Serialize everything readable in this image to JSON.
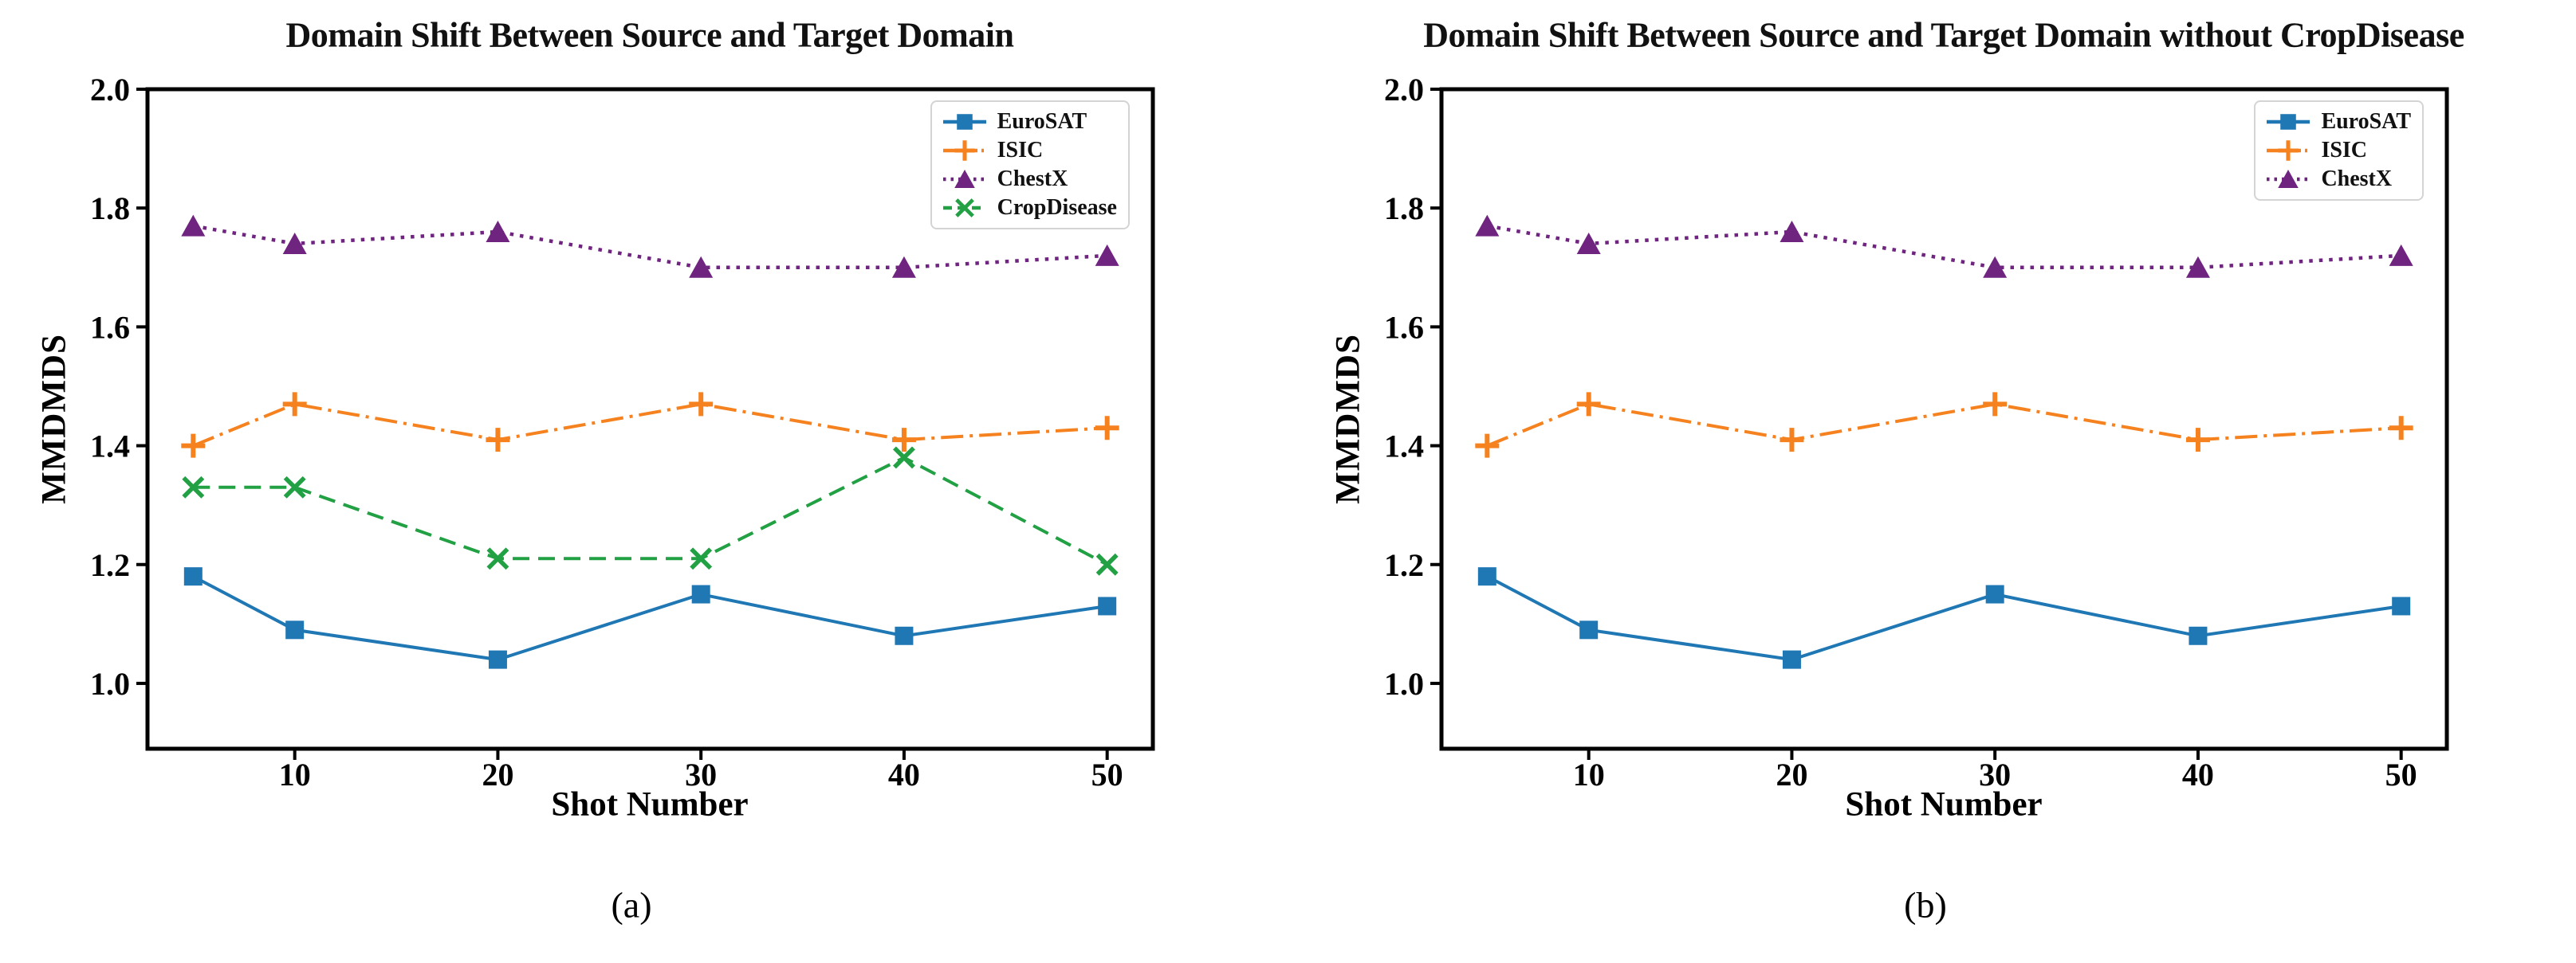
{
  "page": {
    "background": "#ffffff",
    "axis_color": "#000000",
    "legend_border_color": "#d4d4d4"
  },
  "chart_data": [
    {
      "type": "line",
      "title": "Domain Shift Between Source and Target Domain",
      "xlabel": "Shot Number",
      "ylabel": "MMDMDS",
      "caption": "(a)",
      "x": [
        5,
        10,
        20,
        30,
        40,
        50
      ],
      "xlim": [
        2.75,
        52.25
      ],
      "ylim": [
        0.89,
        2.0
      ],
      "xticks": [
        10,
        20,
        30,
        40,
        50
      ],
      "xtick_labels": [
        "10",
        "20",
        "30",
        "40",
        "50"
      ],
      "yticks": [
        1.0,
        1.2,
        1.4,
        1.6,
        1.8,
        2.0
      ],
      "ytick_labels": [
        "1.0",
        "1.2",
        "1.4",
        "1.6",
        "1.8",
        "2.0"
      ],
      "grid": false,
      "legend_position": "upper right",
      "series": [
        {
          "name": "EuroSAT",
          "color": "#1f77b4",
          "linestyle": "solid",
          "marker": "square",
          "values": [
            1.18,
            1.09,
            1.04,
            1.15,
            1.08,
            1.13
          ]
        },
        {
          "name": "ISIC",
          "color": "#f5821e",
          "linestyle": "dashdot",
          "marker": "plus",
          "values": [
            1.4,
            1.47,
            1.41,
            1.47,
            1.41,
            1.43
          ]
        },
        {
          "name": "ChestX",
          "color": "#6f2480",
          "linestyle": "dotted",
          "marker": "triangle",
          "values": [
            1.77,
            1.74,
            1.76,
            1.7,
            1.7,
            1.72
          ]
        },
        {
          "name": "CropDisease",
          "color": "#22a044",
          "linestyle": "dashed",
          "marker": "x",
          "values": [
            1.33,
            1.33,
            1.21,
            1.21,
            1.38,
            1.2
          ]
        }
      ]
    },
    {
      "type": "line",
      "title": "Domain Shift Between Source and Target Domain without CropDisease",
      "xlabel": "Shot Number",
      "ylabel": "MMDMDS",
      "caption": "(b)",
      "x": [
        5,
        10,
        20,
        30,
        40,
        50
      ],
      "xlim": [
        2.75,
        52.25
      ],
      "ylim": [
        0.89,
        2.0
      ],
      "xticks": [
        10,
        20,
        30,
        40,
        50
      ],
      "xtick_labels": [
        "10",
        "20",
        "30",
        "40",
        "50"
      ],
      "yticks": [
        1.0,
        1.2,
        1.4,
        1.6,
        1.8,
        2.0
      ],
      "ytick_labels": [
        "1.0",
        "1.2",
        "1.4",
        "1.6",
        "1.8",
        "2.0"
      ],
      "grid": false,
      "legend_position": "upper right",
      "series": [
        {
          "name": "EuroSAT",
          "color": "#1f77b4",
          "linestyle": "solid",
          "marker": "square",
          "values": [
            1.18,
            1.09,
            1.04,
            1.15,
            1.08,
            1.13
          ]
        },
        {
          "name": "ISIC",
          "color": "#f5821e",
          "linestyle": "dashdot",
          "marker": "plus",
          "values": [
            1.4,
            1.47,
            1.41,
            1.47,
            1.41,
            1.43
          ]
        },
        {
          "name": "ChestX",
          "color": "#6f2480",
          "linestyle": "dotted",
          "marker": "triangle",
          "values": [
            1.77,
            1.74,
            1.76,
            1.7,
            1.7,
            1.72
          ]
        }
      ]
    }
  ]
}
